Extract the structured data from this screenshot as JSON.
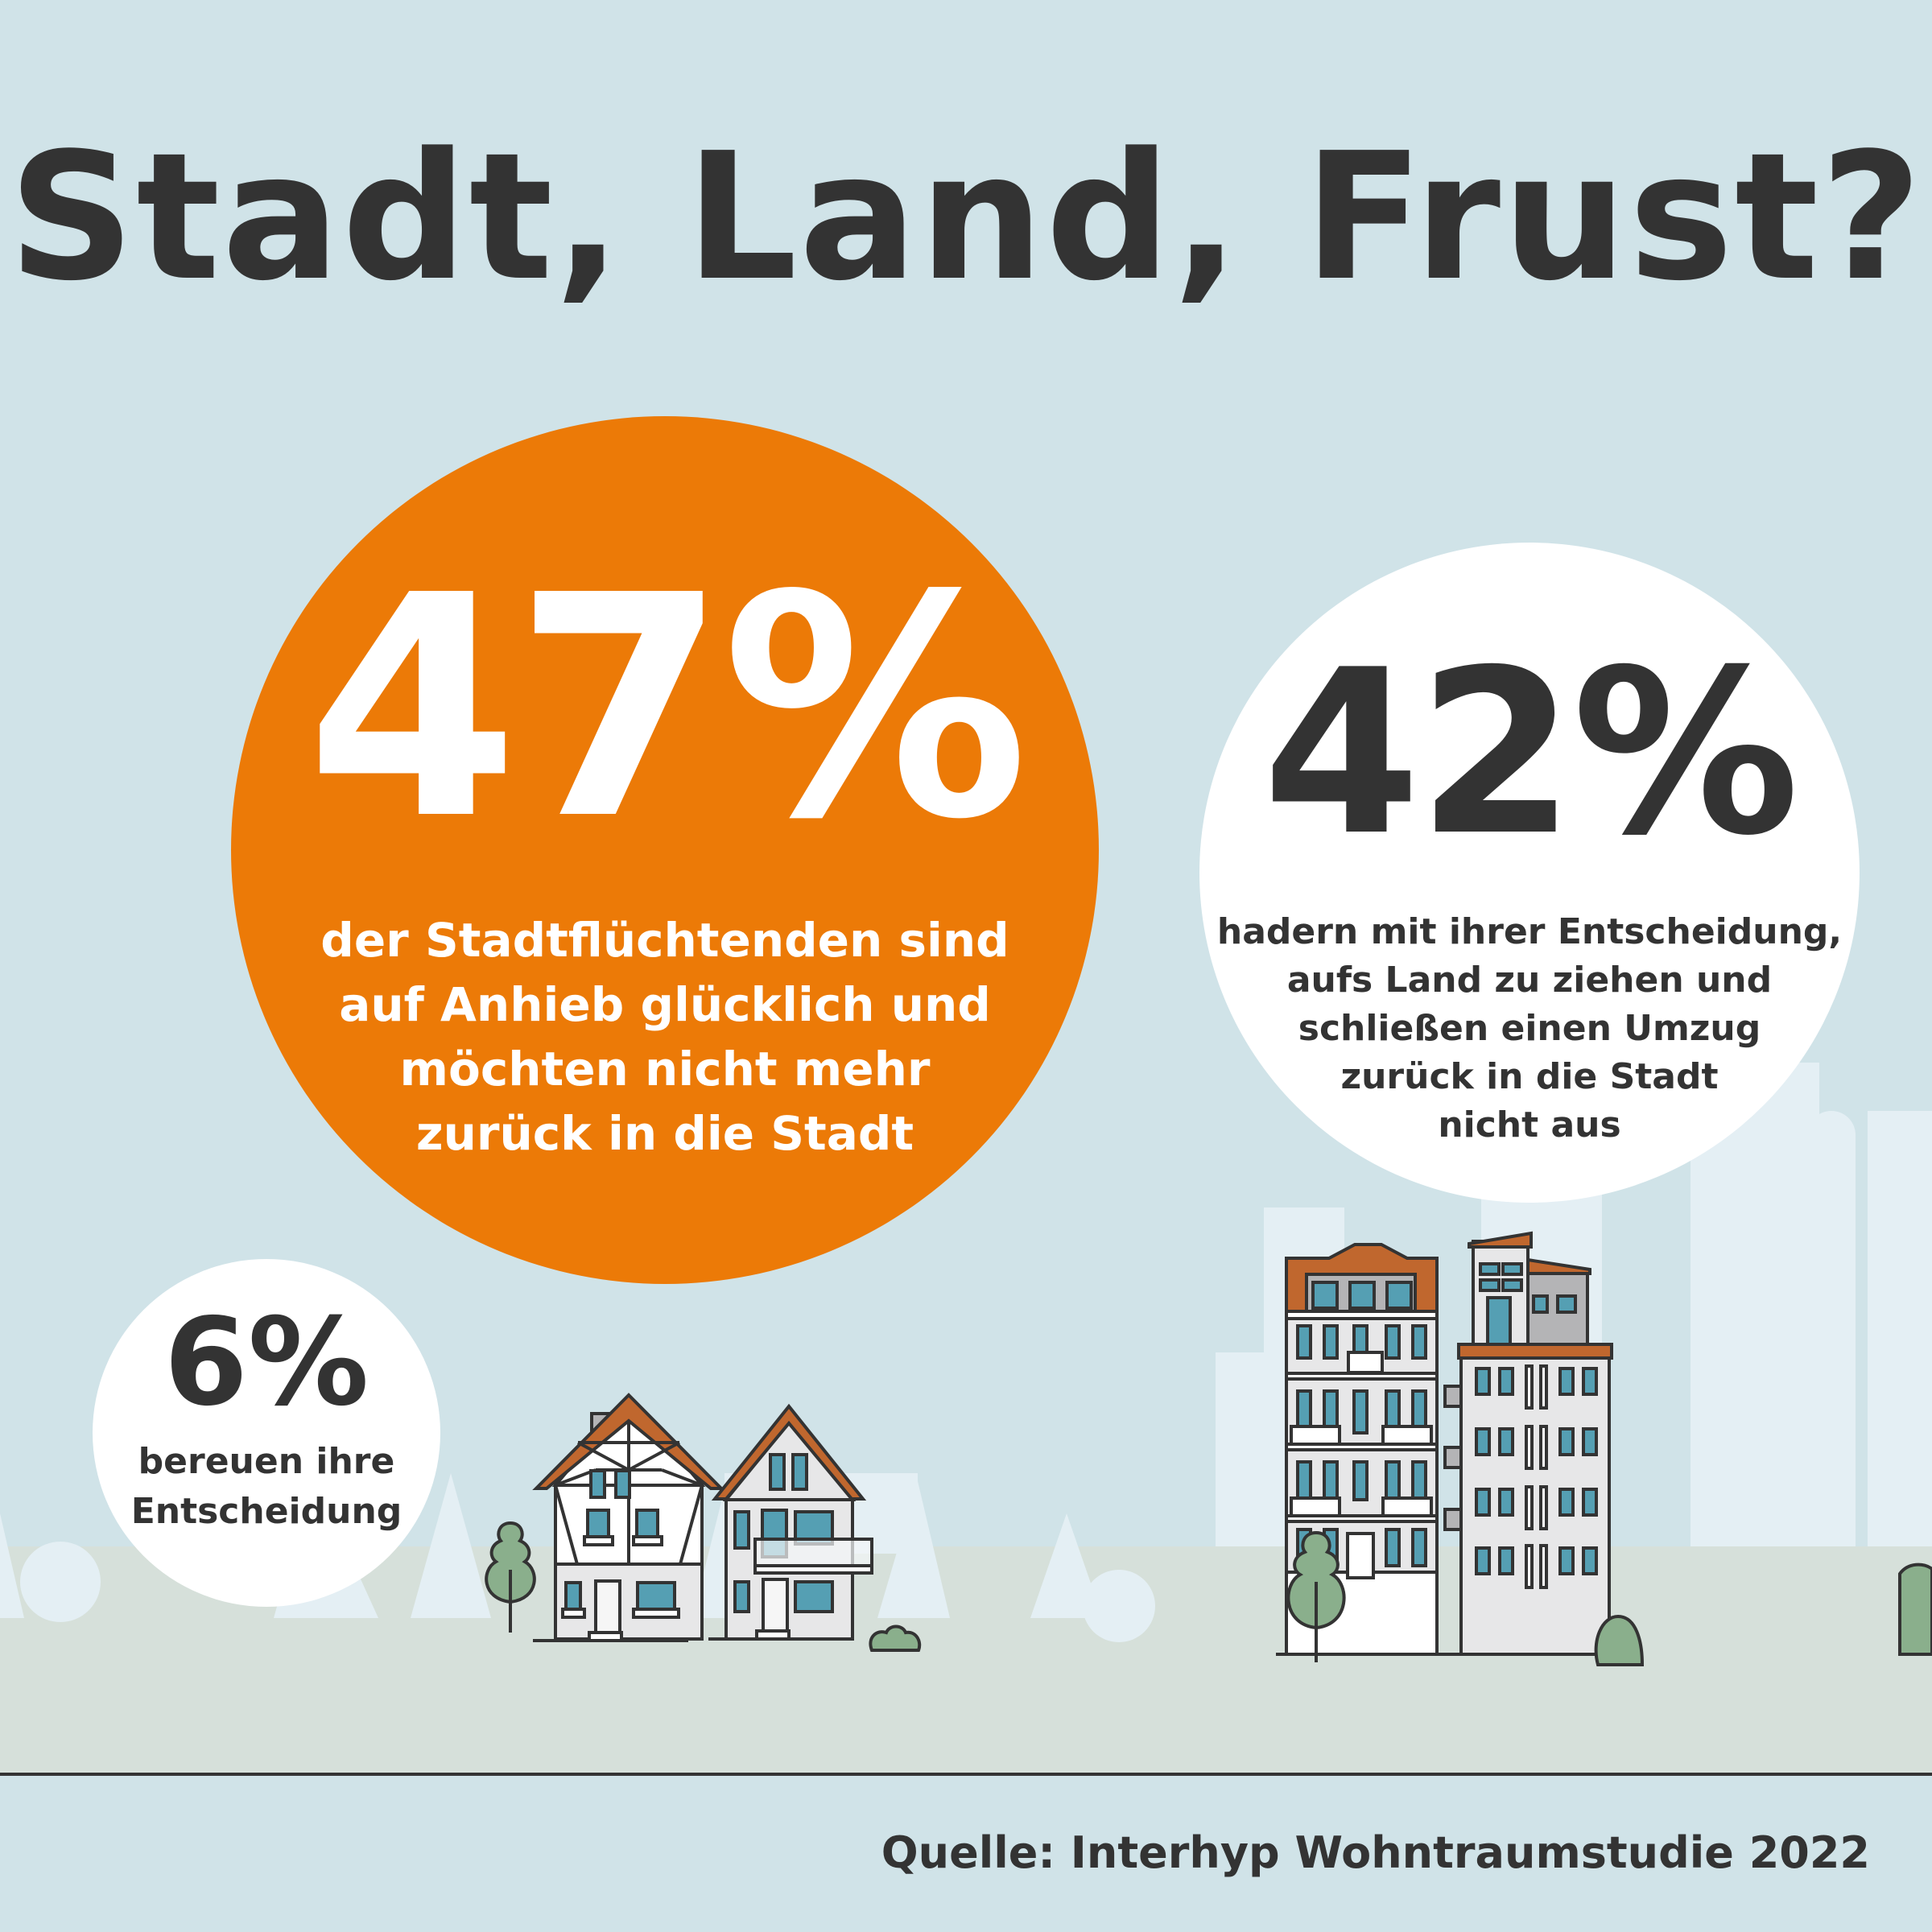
{
  "title": "Stadt, Land, Frust?",
  "stats": [
    {
      "value": "47%",
      "lines": [
        "der Stadtflüchtenden sind",
        "auf Anhieb glücklich und",
        "möchten nicht mehr",
        "zurück in die Stadt"
      ]
    },
    {
      "value": "42%",
      "lines": [
        "hadern mit ihrer Entscheidung,",
        "aufs Land zu ziehen und",
        "schließen einen Umzug",
        "zurück in die Stadt",
        "nicht aus"
      ]
    },
    {
      "value": "6%",
      "lines": [
        "bereuen ihre",
        "Entscheidung"
      ]
    }
  ],
  "source": "Quelle: Interhyp Wohntraumstudie 2022",
  "colors": {
    "background": "#d0e3e8",
    "accent": "#ec7a07",
    "text": "#333333",
    "ground": "#d6e0da",
    "roof": "#c0672e",
    "window": "#559fb3",
    "tree": "#8aaf8c"
  }
}
